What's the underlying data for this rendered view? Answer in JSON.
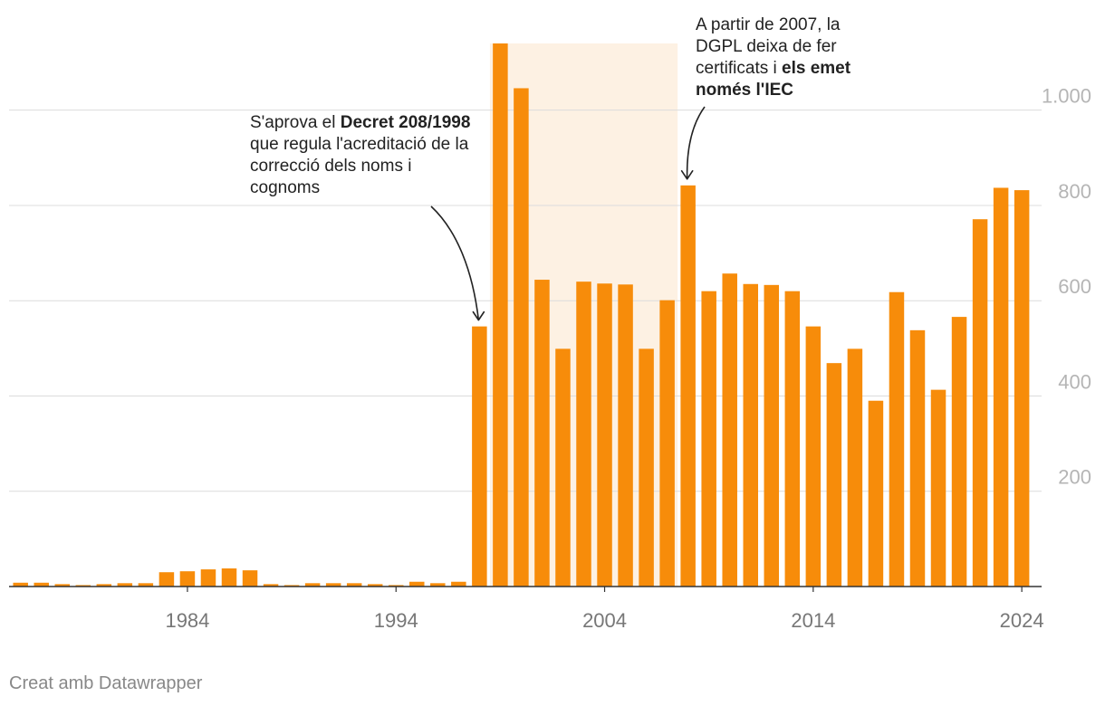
{
  "chart_data": {
    "type": "bar",
    "x": [
      1976,
      1977,
      1978,
      1979,
      1980,
      1981,
      1982,
      1983,
      1984,
      1985,
      1986,
      1987,
      1988,
      1989,
      1990,
      1991,
      1992,
      1993,
      1994,
      1995,
      1996,
      1997,
      1998,
      1999,
      2000,
      2001,
      2002,
      2003,
      2004,
      2005,
      2006,
      2007,
      2008,
      2009,
      2010,
      2011,
      2012,
      2013,
      2014,
      2015,
      2016,
      2017,
      2018,
      2019,
      2020,
      2021,
      2022,
      2023,
      2024
    ],
    "values": [
      8,
      8,
      5,
      3,
      5,
      7,
      7,
      30,
      32,
      36,
      38,
      34,
      5,
      3,
      7,
      7,
      7,
      5,
      3,
      10,
      7,
      10,
      546,
      1140,
      1046,
      644,
      499,
      640,
      636,
      634,
      499,
      601,
      842,
      620,
      657,
      635,
      633,
      620,
      546,
      469,
      499,
      390,
      618,
      538,
      413,
      566,
      771,
      837,
      832
    ],
    "title": "",
    "xlabel": "",
    "ylabel": "",
    "ylim": [
      0,
      1140
    ],
    "yticks": [
      200,
      400,
      600,
      800,
      1000
    ],
    "ytick_labels": [
      "200",
      "400",
      "600",
      "800",
      "1.000"
    ],
    "xticks": [
      1984,
      1994,
      2004,
      2014,
      2024
    ],
    "xtick_labels": [
      "1984",
      "1994",
      "2004",
      "2014",
      "2024"
    ],
    "highlight_range": [
      1999,
      2007
    ],
    "bar_color": "#f78c0a",
    "highlight_color": "#fdf1e3",
    "grid": true
  },
  "annotations": {
    "decret": {
      "before": "S'aprova el ",
      "bold": "Decret 208/1998",
      "after": " que regula l'acreditació de la correcció dels noms i cognoms",
      "target_year": 1998
    },
    "dgpl": {
      "before": "A partir de 2007, la DGPL deixa de fer certificats i ",
      "bold": "els emet només l'IEC",
      "after": "",
      "target_year": 2008
    }
  },
  "footer": "Creat amb Datawrapper"
}
